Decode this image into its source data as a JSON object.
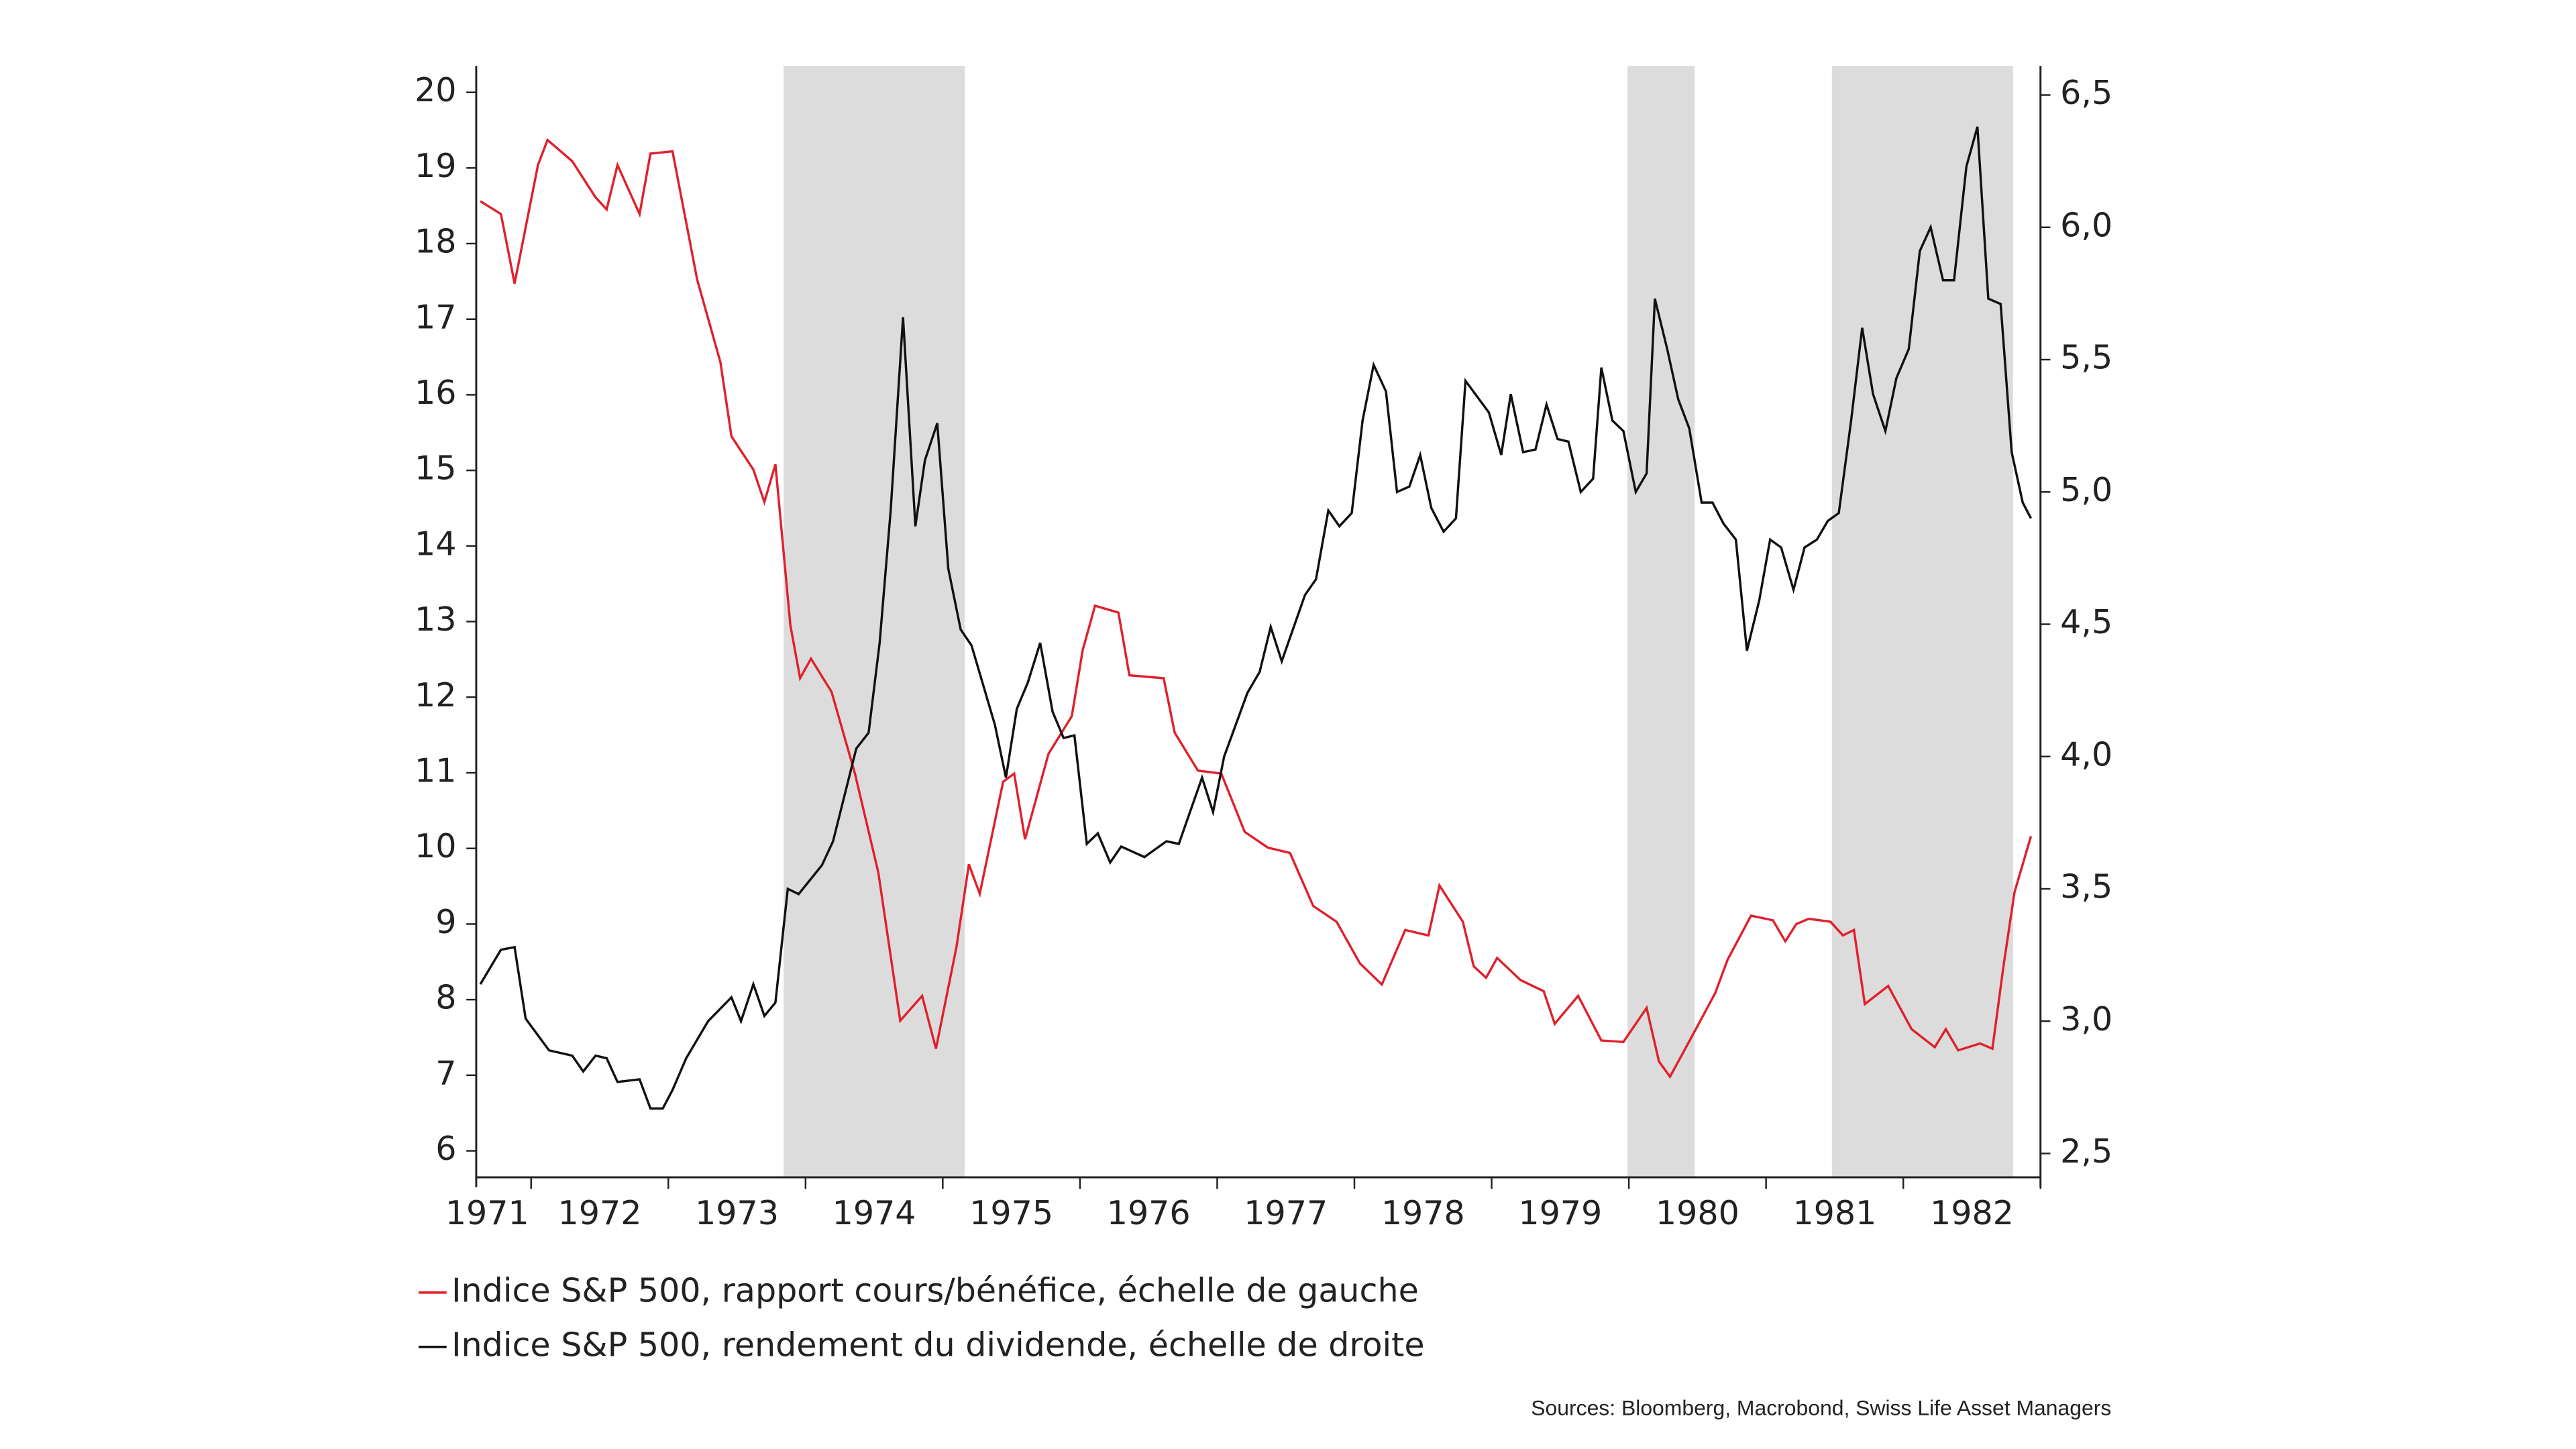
{
  "chart_data": {
    "type": "line",
    "xlim": [
      1971.6,
      1983.0
    ],
    "xticks": [
      1972,
      1973,
      1974,
      1975,
      1976,
      1977,
      1978,
      1979,
      1980,
      1981,
      1982,
      1983
    ],
    "year_labels": [
      {
        "value": 1971.68,
        "label": "1971"
      },
      {
        "value": 1972.5,
        "label": "1972"
      },
      {
        "value": 1973.5,
        "label": "1973"
      },
      {
        "value": 1974.5,
        "label": "1974"
      },
      {
        "value": 1975.5,
        "label": "1975"
      },
      {
        "value": 1976.5,
        "label": "1976"
      },
      {
        "value": 1977.5,
        "label": "1977"
      },
      {
        "value": 1978.5,
        "label": "1978"
      },
      {
        "value": 1979.5,
        "label": "1979"
      },
      {
        "value": 1980.5,
        "label": "1980"
      },
      {
        "value": 1981.5,
        "label": "1981"
      },
      {
        "value": 1982.5,
        "label": "1982"
      }
    ],
    "ylim": [
      5.65,
      20.35
    ],
    "yticks": [
      6,
      7,
      8,
      9,
      10,
      11,
      12,
      13,
      14,
      15,
      16,
      17,
      18,
      19,
      20
    ],
    "y2lim": [
      2.41,
      6.61
    ],
    "y2ticks": [
      {
        "value": 2.5,
        "label": "2,5"
      },
      {
        "value": 3.0,
        "label": "3,0"
      },
      {
        "value": 3.5,
        "label": "3,5"
      },
      {
        "value": 4.0,
        "label": "4,0"
      },
      {
        "value": 4.5,
        "label": "4,5"
      },
      {
        "value": 5.0,
        "label": "5,0"
      },
      {
        "value": 5.5,
        "label": "5,5"
      },
      {
        "value": 6.0,
        "label": "6,0"
      },
      {
        "value": 6.5,
        "label": "6,5"
      }
    ],
    "shaded_ranges": [
      [
        1973.84,
        1975.16
      ],
      [
        1979.99,
        1980.48
      ],
      [
        1981.48,
        1982.8
      ]
    ],
    "shade_color": "#dcdcdc",
    "series": [
      {
        "name": "Indice S&P 500, rapport cours/bénéfice, échelle de gauche",
        "color": "#e0202c",
        "axis": "y",
        "x": [
          1971.63,
          1971.78,
          1971.88,
          1972.05,
          1972.12,
          1972.3,
          1972.47,
          1972.55,
          1972.63,
          1972.79,
          1972.87,
          1973.03,
          1973.21,
          1973.38,
          1973.46,
          1973.62,
          1973.7,
          1973.78,
          1973.89,
          1973.96,
          1974.04,
          1974.19,
          1974.36,
          1974.53,
          1974.69,
          1974.85,
          1974.95,
          1975.1,
          1975.19,
          1975.27,
          1975.44,
          1975.52,
          1975.6,
          1975.77,
          1975.94,
          1976.02,
          1976.11,
          1976.28,
          1976.36,
          1976.61,
          1976.69,
          1976.86,
          1977.03,
          1977.2,
          1977.37,
          1977.53,
          1977.7,
          1977.87,
          1978.04,
          1978.2,
          1978.37,
          1978.54,
          1978.62,
          1978.79,
          1978.87,
          1978.96,
          1979.04,
          1979.21,
          1979.38,
          1979.46,
          1979.63,
          1979.8,
          1979.96,
          1980.13,
          1980.22,
          1980.3,
          1980.47,
          1980.63,
          1980.72,
          1980.89,
          1981.05,
          1981.14,
          1981.22,
          1981.31,
          1981.47,
          1981.56,
          1981.64,
          1981.72,
          1981.89,
          1982.06,
          1982.23,
          1982.31,
          1982.4,
          1982.56,
          1982.65,
          1982.73,
          1982.81,
          1982.93
        ],
        "values": [
          18.56,
          18.39,
          17.47,
          19.04,
          19.37,
          19.09,
          18.61,
          18.45,
          19.04,
          18.39,
          19.19,
          19.22,
          17.52,
          16.43,
          15.45,
          15.01,
          14.58,
          15.08,
          12.95,
          12.25,
          12.51,
          12.07,
          10.99,
          9.68,
          7.72,
          8.05,
          7.35,
          8.7,
          9.79,
          9.4,
          10.88,
          10.99,
          10.12,
          11.25,
          11.75,
          12.62,
          13.21,
          13.12,
          12.29,
          12.25,
          11.53,
          11.03,
          10.99,
          10.22,
          10.01,
          9.94,
          9.24,
          9.03,
          8.48,
          8.2,
          8.92,
          8.85,
          9.51,
          9.03,
          8.44,
          8.29,
          8.55,
          8.26,
          8.11,
          7.68,
          8.05,
          7.46,
          7.44,
          7.89,
          7.18,
          6.98,
          7.55,
          8.09,
          8.53,
          9.11,
          9.05,
          8.77,
          9.0,
          9.07,
          9.03,
          8.85,
          8.92,
          7.94,
          8.18,
          7.61,
          7.37,
          7.61,
          7.33,
          7.42,
          7.35,
          8.44,
          9.42,
          10.16
        ]
      },
      {
        "name": "Indice S&P 500, rendement du dividende, échelle de droite",
        "color": "#111111",
        "axis": "y2",
        "x": [
          1971.63,
          1971.78,
          1971.88,
          1971.96,
          1972.13,
          1972.3,
          1972.38,
          1972.47,
          1972.55,
          1972.63,
          1972.79,
          1972.87,
          1972.96,
          1973.03,
          1973.13,
          1973.29,
          1973.46,
          1973.53,
          1973.62,
          1973.7,
          1973.78,
          1973.87,
          1973.95,
          1974.12,
          1974.2,
          1974.37,
          1974.46,
          1974.54,
          1974.62,
          1974.71,
          1974.8,
          1974.87,
          1974.96,
          1975.04,
          1975.13,
          1975.21,
          1975.38,
          1975.46,
          1975.54,
          1975.62,
          1975.71,
          1975.8,
          1975.88,
          1975.96,
          1976.05,
          1976.13,
          1976.22,
          1976.3,
          1976.47,
          1976.63,
          1976.72,
          1976.89,
          1976.97,
          1977.05,
          1977.22,
          1977.31,
          1977.39,
          1977.47,
          1977.64,
          1977.72,
          1977.81,
          1977.89,
          1977.98,
          1978.06,
          1978.14,
          1978.23,
          1978.31,
          1978.4,
          1978.48,
          1978.56,
          1978.65,
          1978.74,
          1978.81,
          1978.98,
          1979.07,
          1979.14,
          1979.23,
          1979.32,
          1979.4,
          1979.48,
          1979.56,
          1979.65,
          1979.74,
          1979.8,
          1979.88,
          1979.96,
          1980.05,
          1980.13,
          1980.19,
          1980.28,
          1980.36,
          1980.44,
          1980.53,
          1980.61,
          1980.69,
          1980.78,
          1980.86,
          1980.95,
          1981.03,
          1981.11,
          1981.2,
          1981.28,
          1981.37,
          1981.45,
          1981.53,
          1981.62,
          1981.7,
          1981.78,
          1981.87,
          1981.95,
          1982.04,
          1982.12,
          1982.2,
          1982.29,
          1982.37,
          1982.46,
          1982.54,
          1982.62,
          1982.71,
          1982.79,
          1982.87,
          1982.93
        ],
        "values": [
          3.14,
          3.27,
          3.28,
          3.01,
          2.89,
          2.87,
          2.81,
          2.87,
          2.86,
          2.77,
          2.78,
          2.67,
          2.67,
          2.74,
          2.86,
          3.0,
          3.09,
          3.0,
          3.14,
          3.02,
          3.07,
          3.5,
          3.48,
          3.59,
          3.68,
          4.03,
          4.09,
          4.43,
          4.93,
          5.66,
          4.87,
          5.12,
          5.26,
          4.71,
          4.48,
          4.42,
          4.12,
          3.92,
          4.18,
          4.28,
          4.43,
          4.17,
          4.07,
          4.08,
          3.67,
          3.71,
          3.6,
          3.66,
          3.62,
          3.68,
          3.67,
          3.92,
          3.79,
          4.0,
          4.24,
          4.32,
          4.49,
          4.36,
          4.61,
          4.67,
          4.93,
          4.87,
          4.92,
          5.27,
          5.48,
          5.38,
          5.0,
          5.02,
          5.14,
          4.94,
          4.85,
          4.9,
          5.42,
          5.3,
          5.14,
          5.37,
          5.15,
          5.16,
          5.33,
          5.2,
          5.19,
          5.0,
          5.05,
          5.47,
          5.27,
          5.23,
          5.0,
          5.07,
          5.73,
          5.54,
          5.35,
          5.24,
          4.96,
          4.96,
          4.88,
          4.82,
          4.4,
          4.59,
          4.82,
          4.79,
          4.63,
          4.79,
          4.82,
          4.89,
          4.92,
          5.27,
          5.62,
          5.37,
          5.23,
          5.43,
          5.54,
          5.91,
          6.0,
          5.8,
          5.8,
          6.23,
          6.38,
          5.73,
          5.71,
          5.15,
          4.96,
          4.9
        ]
      }
    ],
    "source": "Sources: Bloomberg, Macrobond, Swiss Life Asset Managers"
  }
}
